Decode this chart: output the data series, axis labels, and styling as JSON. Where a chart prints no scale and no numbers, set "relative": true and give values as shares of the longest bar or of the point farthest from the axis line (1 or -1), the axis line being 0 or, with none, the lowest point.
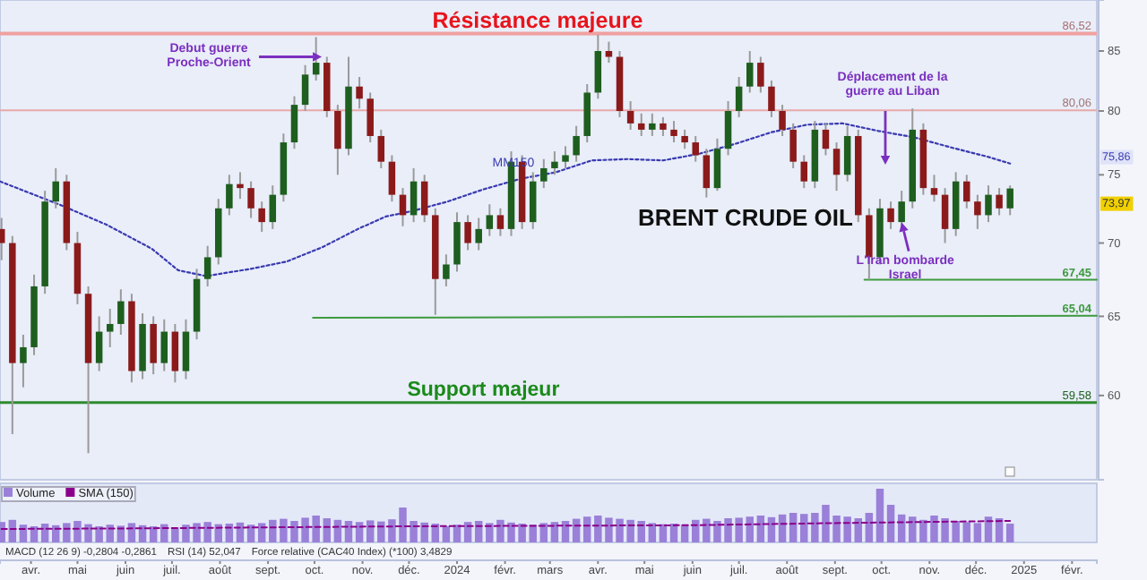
{
  "chart_data": [
    {
      "type": "candlestick",
      "title": "BRENT CRUDE OIL",
      "x": [
        "2023-03-13",
        "2023-03-20",
        "2023-03-27",
        "2023-04-03",
        "2023-04-10",
        "2023-04-17",
        "2023-04-24",
        "2023-05-01",
        "2023-05-08",
        "2023-05-15",
        "2023-05-22",
        "2023-05-29",
        "2023-06-05",
        "2023-06-12",
        "2023-06-19",
        "2023-06-26",
        "2023-07-03",
        "2023-07-10",
        "2023-07-17",
        "2023-07-24",
        "2023-07-31",
        "2023-08-07",
        "2023-08-14",
        "2023-08-21",
        "2023-08-28",
        "2023-09-04",
        "2023-09-11",
        "2023-09-18",
        "2023-09-25",
        "2023-10-02",
        "2023-10-09",
        "2023-10-16",
        "2023-10-23",
        "2023-10-30",
        "2023-11-06",
        "2023-11-13",
        "2023-11-20",
        "2023-11-27",
        "2023-12-04",
        "2023-12-11",
        "2023-12-18",
        "2023-12-25",
        "2024-01-01",
        "2024-01-08",
        "2024-01-15",
        "2024-01-22",
        "2024-01-29",
        "2024-02-05",
        "2024-02-12",
        "2024-02-19",
        "2024-02-26",
        "2024-03-04",
        "2024-03-11",
        "2024-03-18",
        "2024-03-25",
        "2024-04-01",
        "2024-04-08",
        "2024-04-15",
        "2024-04-22",
        "2024-04-29",
        "2024-05-06",
        "2024-05-13",
        "2024-05-20",
        "2024-05-27",
        "2024-06-03",
        "2024-06-10",
        "2024-06-17",
        "2024-06-24",
        "2024-07-01",
        "2024-07-08",
        "2024-07-15",
        "2024-07-22",
        "2024-07-29",
        "2024-08-05",
        "2024-08-12",
        "2024-08-19",
        "2024-08-26",
        "2024-09-02",
        "2024-09-09",
        "2024-09-16",
        "2024-09-23",
        "2024-09-30",
        "2024-10-07",
        "2024-10-14",
        "2024-10-21",
        "2024-10-28",
        "2024-11-04",
        "2024-11-11",
        "2024-11-18",
        "2024-11-25",
        "2024-12-02",
        "2024-12-09",
        "2024-12-16",
        "2024-12-23"
      ],
      "ohlc": [
        [
          71,
          71.8,
          68.8,
          70
        ],
        [
          70,
          70.5,
          57.7,
          62
        ],
        [
          62,
          63.8,
          60.5,
          63
        ],
        [
          63,
          67.8,
          62.5,
          67
        ],
        [
          67,
          73.8,
          66.5,
          73
        ],
        [
          73,
          75.5,
          72.5,
          74.5
        ],
        [
          74.5,
          75,
          69.5,
          70
        ],
        [
          70,
          70.8,
          65.8,
          66.5
        ],
        [
          66.5,
          67,
          56.6,
          62
        ],
        [
          62,
          65,
          61.5,
          64
        ],
        [
          64,
          65.5,
          63,
          64.5
        ],
        [
          64.5,
          66.8,
          63.8,
          66
        ],
        [
          66,
          66.5,
          60.8,
          61.5
        ],
        [
          61.5,
          65.2,
          61,
          64.5
        ],
        [
          64.5,
          65,
          61.3,
          62
        ],
        [
          62,
          64.8,
          61.5,
          64
        ],
        [
          64,
          64.5,
          60.8,
          61.5
        ],
        [
          61.5,
          64.8,
          61,
          64
        ],
        [
          64,
          68.2,
          63.5,
          67.5
        ],
        [
          67.5,
          69.8,
          67,
          69
        ],
        [
          69,
          73.2,
          68.5,
          72.5
        ],
        [
          72.5,
          75,
          72,
          74.3
        ],
        [
          74.3,
          75.2,
          73.2,
          74
        ],
        [
          74,
          74.5,
          71.8,
          72.5
        ],
        [
          72.5,
          73,
          70.8,
          71.5
        ],
        [
          71.5,
          74.2,
          71,
          73.5
        ],
        [
          73.5,
          78.2,
          73,
          77.5
        ],
        [
          77.5,
          81.2,
          77,
          80.5
        ],
        [
          80.5,
          83.8,
          80,
          83
        ],
        [
          83,
          86.2,
          82.5,
          84
        ],
        [
          84,
          84.5,
          79.5,
          80
        ],
        [
          80,
          80.5,
          75,
          77
        ],
        [
          77,
          84.5,
          76.5,
          82
        ],
        [
          82,
          82.8,
          80.2,
          81
        ],
        [
          81,
          81.5,
          77.5,
          78
        ],
        [
          78,
          78.5,
          75.5,
          76
        ],
        [
          76,
          76.5,
          73,
          73.5
        ],
        [
          73.5,
          74,
          71.2,
          72
        ],
        [
          72,
          75.5,
          71.5,
          74.5
        ],
        [
          74.5,
          75,
          71.5,
          72
        ],
        [
          72,
          72.5,
          65.1,
          67.5
        ],
        [
          67.5,
          69.2,
          67,
          68.5
        ],
        [
          68.5,
          72.2,
          68,
          71.5
        ],
        [
          71.5,
          72,
          69.5,
          70
        ],
        [
          70,
          71.8,
          69.5,
          71
        ],
        [
          71,
          72.8,
          70.5,
          72
        ],
        [
          72,
          72.5,
          70.5,
          71
        ],
        [
          71,
          76.8,
          70.5,
          76
        ],
        [
          76,
          76.5,
          71,
          71.5
        ],
        [
          71.5,
          75.2,
          71,
          74.5
        ],
        [
          74.5,
          76.2,
          74,
          75.5
        ],
        [
          75.5,
          76.8,
          75,
          76
        ],
        [
          76,
          77.2,
          75.5,
          76.5
        ],
        [
          76.5,
          78.8,
          76,
          78
        ],
        [
          78,
          82.2,
          77.5,
          81.5
        ],
        [
          81.5,
          86.4,
          81,
          85
        ],
        [
          85,
          85.8,
          84,
          84.5
        ],
        [
          84.5,
          85,
          79.5,
          80
        ],
        [
          80,
          80.8,
          78.5,
          79
        ],
        [
          79,
          79.8,
          78,
          78.5
        ],
        [
          78.5,
          79.8,
          78,
          79
        ],
        [
          79,
          79.5,
          78,
          78.5
        ],
        [
          78.5,
          79.2,
          77.5,
          78
        ],
        [
          78,
          78.5,
          77,
          77.5
        ],
        [
          77.5,
          78,
          76,
          76.5
        ],
        [
          76.5,
          77,
          73.3,
          74
        ],
        [
          74,
          77.8,
          73.8,
          77
        ],
        [
          77,
          80.8,
          76.5,
          80
        ],
        [
          80,
          82.8,
          79.5,
          82
        ],
        [
          82,
          85,
          81.5,
          84
        ],
        [
          84,
          84.5,
          81.5,
          82
        ],
        [
          82,
          82.5,
          79.5,
          80
        ],
        [
          80,
          80.5,
          78,
          78.5
        ],
        [
          78.5,
          79,
          75.5,
          76
        ],
        [
          76,
          76.5,
          74,
          74.5
        ],
        [
          74.5,
          79.2,
          74,
          78.5
        ],
        [
          78.5,
          79,
          76.5,
          77
        ],
        [
          77,
          77.5,
          73.8,
          75
        ],
        [
          75,
          78.8,
          74.5,
          78
        ],
        [
          78,
          78.5,
          71.5,
          72
        ],
        [
          72,
          72.5,
          67.45,
          69
        ],
        [
          69,
          73.2,
          68.5,
          72.5
        ],
        [
          72.5,
          73,
          71,
          71.5
        ],
        [
          71.5,
          73.8,
          71,
          73
        ],
        [
          73,
          80.2,
          72.5,
          78.5
        ],
        [
          78.5,
          79,
          73.5,
          74
        ],
        [
          74,
          75,
          73,
          73.5
        ],
        [
          73.5,
          74,
          70,
          71
        ],
        [
          71,
          75.2,
          70.5,
          74.5
        ],
        [
          74.5,
          75,
          72.5,
          73
        ],
        [
          73,
          73.5,
          71,
          72
        ],
        [
          72,
          74.2,
          71.5,
          73.5
        ],
        [
          73.5,
          74,
          72,
          72.5
        ],
        [
          72.5,
          74.2,
          72,
          73.97
        ]
      ],
      "colors": [
        "#8b1a1a",
        "#8b1a1a",
        "#1e5e1e",
        "#1e5e1e",
        "#1e5e1e",
        "#1e5e1e",
        "#8b1a1a",
        "#8b1a1a",
        "#8b1a1a",
        "#1e5e1e",
        "#1e5e1e",
        "#1e5e1e",
        "#8b1a1a",
        "#1e5e1e",
        "#8b1a1a",
        "#1e5e1e",
        "#8b1a1a",
        "#1e5e1e",
        "#1e5e1e",
        "#1e5e1e",
        "#1e5e1e",
        "#1e5e1e",
        "#8b1a1a",
        "#8b1a1a",
        "#8b1a1a",
        "#1e5e1e",
        "#1e5e1e",
        "#1e5e1e",
        "#1e5e1e",
        "#1e5e1e",
        "#8b1a1a",
        "#8b1a1a",
        "#1e5e1e",
        "#8b1a1a",
        "#8b1a1a",
        "#8b1a1a",
        "#8b1a1a",
        "#8b1a1a",
        "#1e5e1e",
        "#8b1a1a",
        "#8b1a1a",
        "#1e5e1e",
        "#1e5e1e",
        "#8b1a1a",
        "#1e5e1e",
        "#1e5e1e",
        "#8b1a1a",
        "#1e5e1e",
        "#8b1a1a",
        "#1e5e1e",
        "#1e5e1e",
        "#1e5e1e",
        "#1e5e1e",
        "#1e5e1e",
        "#1e5e1e",
        "#1e5e1e",
        "#8b1a1a",
        "#8b1a1a",
        "#8b1a1a",
        "#8b1a1a",
        "#1e5e1e",
        "#8b1a1a",
        "#8b1a1a",
        "#8b1a1a",
        "#8b1a1a",
        "#8b1a1a",
        "#1e5e1e",
        "#1e5e1e",
        "#1e5e1e",
        "#1e5e1e",
        "#8b1a1a",
        "#8b1a1a",
        "#8b1a1a",
        "#8b1a1a",
        "#8b1a1a",
        "#1e5e1e",
        "#8b1a1a",
        "#8b1a1a",
        "#1e5e1e",
        "#8b1a1a",
        "#8b1a1a",
        "#1e5e1e",
        "#8b1a1a",
        "#1e5e1e",
        "#1e5e1e",
        "#8b1a1a",
        "#8b1a1a",
        "#8b1a1a",
        "#1e5e1e",
        "#8b1a1a",
        "#8b1a1a",
        "#1e5e1e",
        "#8b1a1a",
        "#1e5e1e"
      ],
      "series": [
        {
          "name": "MM150",
          "type": "line",
          "color": "#3a3ab0",
          "line_style": "dotted",
          "x": [
            "2023-03-12",
            "2023-04-21",
            "2023-05-20",
            "2023-06-18",
            "2023-07-05",
            "2023-07-23",
            "2023-08-21",
            "2023-09-13",
            "2023-10-06",
            "2023-10-29",
            "2023-11-16",
            "2023-12-03",
            "2023-12-26",
            "2024-01-18",
            "2024-02-11",
            "2024-03-05",
            "2024-03-28",
            "2024-04-20",
            "2024-05-13",
            "2024-06-05",
            "2024-06-29",
            "2024-07-22",
            "2024-08-14",
            "2024-09-06",
            "2024-09-29",
            "2024-10-22",
            "2024-11-15",
            "2024-12-08",
            "2024-12-23"
          ],
          "values": [
            74.5,
            72.7,
            71.3,
            69.6,
            68.1,
            67.7,
            68.2,
            68.7,
            69.7,
            71.0,
            71.9,
            72.3,
            73.0,
            73.9,
            74.7,
            75.2,
            76.1,
            76.2,
            76.1,
            76.6,
            77.4,
            78.3,
            78.9,
            79.0,
            78.4,
            77.9,
            77.1,
            76.4,
            75.86
          ]
        },
        {
          "name": "67,45",
          "type": "line",
          "color": "#3f9a3f",
          "x": [
            "2024-09-20",
            "2025-02-17"
          ],
          "values": [
            67.45,
            67.45
          ]
        },
        {
          "name": "65,04",
          "type": "line",
          "color": "#3f9a3f",
          "x": [
            "2023-09-30",
            "2025-02-17"
          ],
          "values": [
            64.9,
            65.04
          ]
        }
      ],
      "ref_lines": [
        {
          "axis": "y",
          "value": 86.52,
          "label": "86,52",
          "color": "#f0a0a0"
        },
        {
          "axis": "y",
          "value": 80.06,
          "label": "80,06",
          "color": "#e8a8a8"
        },
        {
          "axis": "y",
          "value": 59.58,
          "label": "59,58",
          "color": "#2e8b2e"
        }
      ],
      "annotations": [
        {
          "text": "Résistance majeure",
          "x": "2024-02-22",
          "y": 86.52
        },
        {
          "text": "Support majeur",
          "x": "2024-01-18",
          "y": 59.58
        },
        {
          "text": "Debut guerre Proche-Orient",
          "x": "2023-10-08",
          "y": 84.5
        },
        "Déplacement de la guerre au Liban",
        {
          "text": "L'Iran bombarde Israel",
          "x": "2024-10-14",
          "y": 71.6
        },
        "73,97",
        "75,86"
      ],
      "log": true,
      "xlim": [
        "2023-03-12",
        "2025-02-17"
      ],
      "ylim": [
        55.1,
        89.5
      ],
      "yticks": [
        60,
        65,
        70,
        75,
        80,
        85
      ],
      "tick_labels": "y"
    },
    {
      "type": "bar",
      "relative": true,
      "legend": "top left",
      "tick_labels": "x",
      "x": [
        "2023-03-13",
        "2023-03-20",
        "2023-03-27",
        "2023-04-03",
        "2023-04-10",
        "2023-04-17",
        "2023-04-24",
        "2023-05-01",
        "2023-05-08",
        "2023-05-15",
        "2023-05-22",
        "2023-05-29",
        "2023-06-05",
        "2023-06-12",
        "2023-06-19",
        "2023-06-26",
        "2023-07-03",
        "2023-07-10",
        "2023-07-17",
        "2023-07-24",
        "2023-07-31",
        "2023-08-07",
        "2023-08-14",
        "2023-08-21",
        "2023-08-28",
        "2023-09-04",
        "2023-09-11",
        "2023-09-18",
        "2023-09-25",
        "2023-10-02",
        "2023-10-09",
        "2023-10-16",
        "2023-10-23",
        "2023-10-30",
        "2023-11-06",
        "2023-11-13",
        "2023-11-20",
        "2023-11-27",
        "2023-12-04",
        "2023-12-11",
        "2023-12-18",
        "2023-12-25",
        "2024-01-01",
        "2024-01-08",
        "2024-01-15",
        "2024-01-22",
        "2024-01-29",
        "2024-02-05",
        "2024-02-12",
        "2024-02-19",
        "2024-02-26",
        "2024-03-04",
        "2024-03-11",
        "2024-03-18",
        "2024-03-25",
        "2024-04-01",
        "2024-04-08",
        "2024-04-15",
        "2024-04-22",
        "2024-04-29",
        "2024-05-06",
        "2024-05-13",
        "2024-05-20",
        "2024-05-27",
        "2024-06-03",
        "2024-06-10",
        "2024-06-17",
        "2024-06-24",
        "2024-07-01",
        "2024-07-08",
        "2024-07-15",
        "2024-07-22",
        "2024-07-29",
        "2024-08-05",
        "2024-08-12",
        "2024-08-19",
        "2024-08-26",
        "2024-09-02",
        "2024-09-09",
        "2024-09-16",
        "2024-09-23",
        "2024-09-30",
        "2024-10-07",
        "2024-10-14",
        "2024-10-21",
        "2024-10-28",
        "2024-11-04",
        "2024-11-11",
        "2024-11-18",
        "2024-11-25",
        "2024-12-02",
        "2024-12-09",
        "2024-12-16",
        "2024-12-23"
      ],
      "series": [
        {
          "name": "Volume",
          "color": "#9a80d8",
          "values": [
            0.38,
            0.42,
            0.33,
            0.3,
            0.35,
            0.32,
            0.36,
            0.4,
            0.34,
            0.3,
            0.33,
            0.31,
            0.36,
            0.32,
            0.3,
            0.34,
            0.28,
            0.33,
            0.36,
            0.38,
            0.34,
            0.35,
            0.37,
            0.33,
            0.36,
            0.42,
            0.44,
            0.4,
            0.46,
            0.5,
            0.45,
            0.42,
            0.4,
            0.38,
            0.41,
            0.39,
            0.43,
            0.65,
            0.4,
            0.37,
            0.35,
            0.3,
            0.33,
            0.38,
            0.4,
            0.36,
            0.42,
            0.37,
            0.35,
            0.33,
            0.36,
            0.38,
            0.4,
            0.44,
            0.48,
            0.5,
            0.46,
            0.44,
            0.42,
            0.4,
            0.36,
            0.34,
            0.35,
            0.33,
            0.42,
            0.44,
            0.4,
            0.45,
            0.46,
            0.48,
            0.5,
            0.47,
            0.52,
            0.55,
            0.53,
            0.55,
            0.7,
            0.5,
            0.48,
            0.45,
            0.55,
            1.0,
            0.7,
            0.52,
            0.48,
            0.42,
            0.5,
            0.45,
            0.4,
            0.38,
            0.36,
            0.48,
            0.45,
            0.35
          ]
        },
        {
          "name": "SMA (150)",
          "type": "line",
          "color": "#8b008b",
          "line_style": "dashed",
          "x": [
            "2023-03-13",
            "2023-06-01",
            "2023-09-01",
            "2023-12-01",
            "2024-03-01",
            "2024-06-01",
            "2024-09-01",
            "2024-12-23"
          ],
          "values": [
            0.25,
            0.26,
            0.28,
            0.3,
            0.31,
            0.32,
            0.36,
            0.4
          ]
        }
      ],
      "annotations": [
        "MACD (12 26 9) -0,2804 -0,2861",
        "RSI (14) 52,047",
        "Force relative (CAC40 Index) (*100) 3,4829"
      ],
      "xlim": [
        "2023-03-12",
        "2025-02-17"
      ],
      "xticks": [
        {
          "value": "2023-04-01",
          "label": "avr."
        },
        {
          "value": "2023-05-01",
          "label": "mai"
        },
        {
          "value": "2023-06-01",
          "label": "juin"
        },
        {
          "value": "2023-07-01",
          "label": "juil."
        },
        {
          "value": "2023-08-01",
          "label": "août"
        },
        {
          "value": "2023-09-01",
          "label": "sept."
        },
        {
          "value": "2023-10-01",
          "label": "oct."
        },
        {
          "value": "2023-11-01",
          "label": "nov."
        },
        {
          "value": "2023-12-01",
          "label": "déc."
        },
        {
          "value": "2024-01-01",
          "label": "2024"
        },
        {
          "value": "2024-02-01",
          "label": "févr."
        },
        {
          "value": "2024-03-01",
          "label": "mars"
        },
        {
          "value": "2024-04-01",
          "label": "avr."
        },
        {
          "value": "2024-05-01",
          "label": "mai"
        },
        {
          "value": "2024-06-01",
          "label": "juin"
        },
        {
          "value": "2024-07-01",
          "label": "juil."
        },
        {
          "value": "2024-08-01",
          "label": "août"
        },
        {
          "value": "2024-09-01",
          "label": "sept."
        },
        {
          "value": "2024-10-01",
          "label": "oct."
        },
        {
          "value": "2024-11-01",
          "label": "nov."
        },
        {
          "value": "2024-12-01",
          "label": "déc."
        },
        {
          "value": "2025-01-01",
          "label": "2025"
        },
        {
          "value": "2025-02-01",
          "label": "févr."
        }
      ]
    }
  ]
}
